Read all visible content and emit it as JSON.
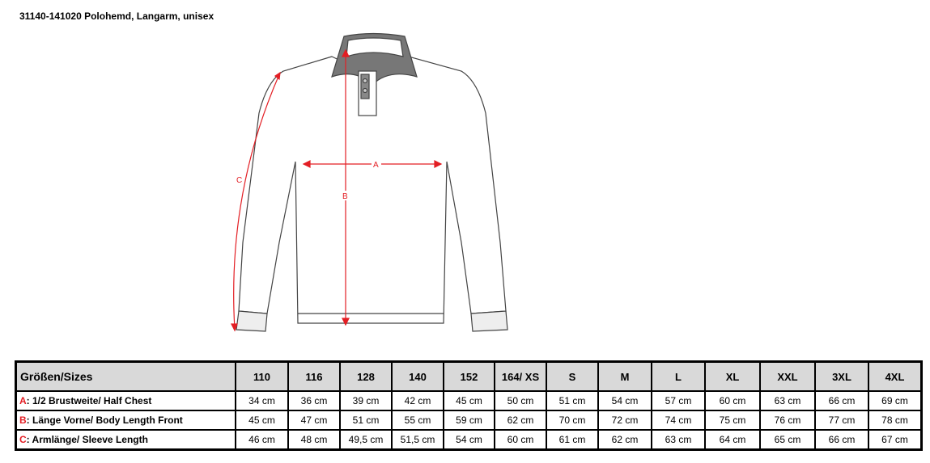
{
  "title": "31140-141020  Polohemd, Langarm, unisex",
  "measure_labels": {
    "a": "A",
    "b": "B",
    "c": "C"
  },
  "accent_color": "#e31e24",
  "table": {
    "header_label": "Größen/Sizes",
    "sizes": [
      "110",
      "116",
      "128",
      "140",
      "152",
      "164/ XS",
      "S",
      "M",
      "L",
      "XL",
      "XXL",
      "3XL",
      "4XL"
    ],
    "rows": [
      {
        "letter": "A",
        "label": ": 1/2 Brustweite/ Half Chest",
        "values": [
          "34 cm",
          "36 cm",
          "39 cm",
          "42 cm",
          "45 cm",
          "50 cm",
          "51 cm",
          "54 cm",
          "57 cm",
          "60 cm",
          "63 cm",
          "66 cm",
          "69 cm"
        ]
      },
      {
        "letter": "B",
        "label": ": Länge Vorne/ Body Length Front",
        "values": [
          "45 cm",
          "47 cm",
          "51 cm",
          "55 cm",
          "59 cm",
          "62 cm",
          "70 cm",
          "72 cm",
          "74 cm",
          "75 cm",
          "76 cm",
          "77 cm",
          "78 cm"
        ]
      },
      {
        "letter": "C",
        "label": ": Armlänge/ Sleeve Length",
        "values": [
          "46 cm",
          "48 cm",
          "49,5 cm",
          "51,5 cm",
          "54 cm",
          "60 cm",
          "61 cm",
          "62 cm",
          "63 cm",
          "64 cm",
          "65 cm",
          "66 cm",
          "67 cm"
        ]
      }
    ]
  }
}
